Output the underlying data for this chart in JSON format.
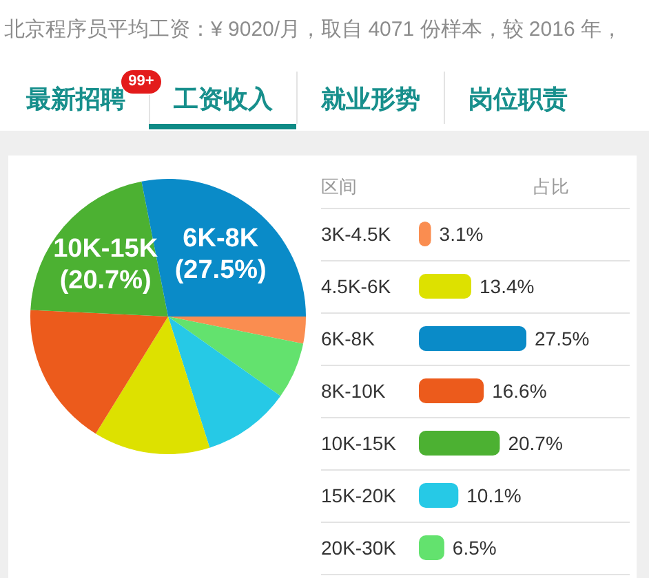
{
  "chart_data": [
    {
      "type": "pie",
      "title": "北京程序员平均工资：¥ 9020/月，取自 4071 份样本，较 2016 年，",
      "annotations": [
        "最新招聘",
        "99+",
        "工资收入",
        "就业形势",
        "岗位职责"
      ],
      "categories": [
        null,
        null,
        null,
        null,
        null,
        "10K-15K",
        "6K-8K"
      ],
      "values": [
        3.1,
        6.5,
        10.1,
        13.4,
        16.6,
        20.7,
        27.5
      ],
      "colors": [
        "#fa8d50",
        "#63e26e",
        "#26c9e6",
        "#dde100",
        "#ec5b1c",
        "#4cb132",
        "#0a8bc8"
      ],
      "value_labels": [
        null,
        null,
        null,
        null,
        null,
        "(20.7%)",
        "(27.5%)"
      ]
    },
    {
      "type": "bar",
      "orientation": "horizontal",
      "ylabel": "区间",
      "xlabel": "占比",
      "categories": [
        "3K-4.5K",
        "4.5K-6K",
        "6K-8K",
        "8K-10K",
        "10K-15K",
        "15K-20K",
        "20K-30K"
      ],
      "values": [
        3.1,
        13.4,
        27.5,
        16.6,
        20.7,
        10.1,
        6.5
      ],
      "colors": [
        "#fa8d50",
        "#dde100",
        "#0a8bc8",
        "#ec5b1c",
        "#4cb132",
        "#26c9e6",
        "#63e26e"
      ],
      "value_labels": [
        "3.1%",
        "13.4%",
        "27.5%",
        "16.6%",
        "20.7%",
        "10.1%",
        "6.5%"
      ]
    }
  ]
}
